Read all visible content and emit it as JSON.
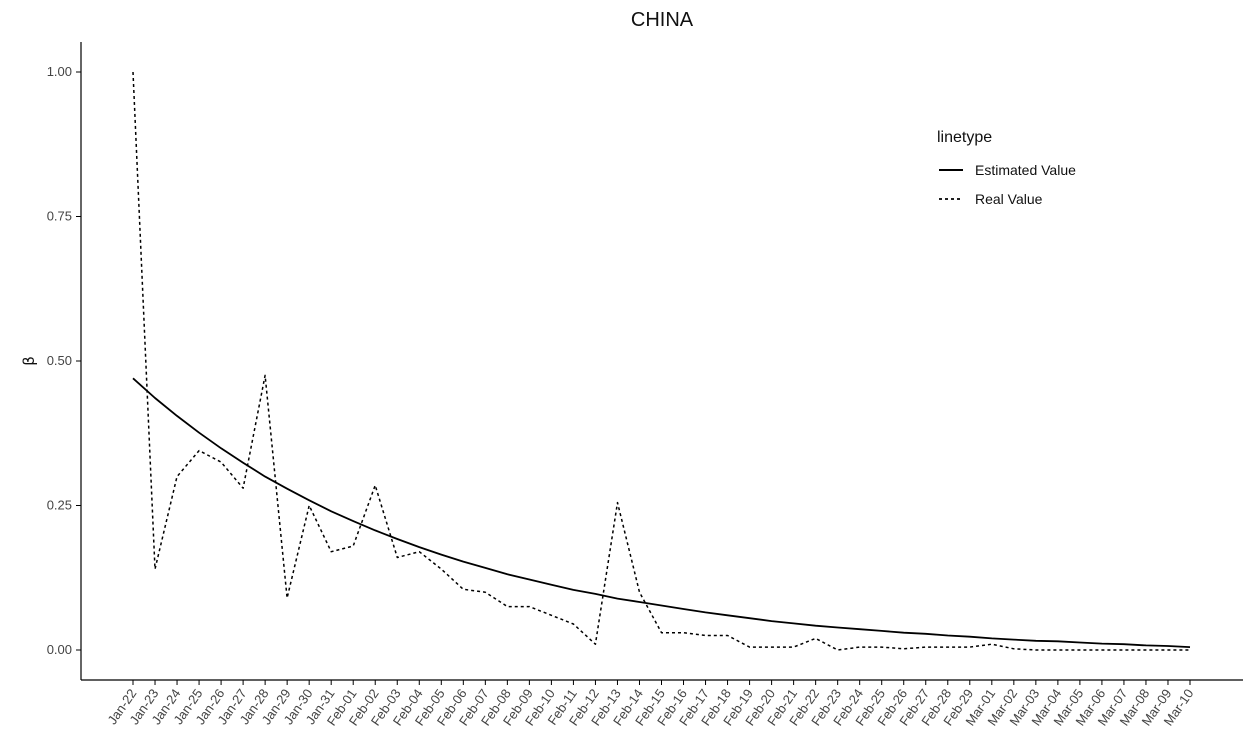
{
  "chart_data": {
    "type": "line",
    "title": "CHINA",
    "xlabel": "",
    "ylabel": "β",
    "ylim": [
      -0.05,
      1.05
    ],
    "yticks": [
      "0.00",
      "0.25",
      "0.50",
      "0.75",
      "1.00"
    ],
    "ytick_values": [
      0,
      0.25,
      0.5,
      0.75,
      1.0
    ],
    "grid": false,
    "legend": {
      "title": "linetype",
      "position": "top-right"
    },
    "categories": [
      "Jan-22",
      "Jan-23",
      "Jan-24",
      "Jan-25",
      "Jan-26",
      "Jan-27",
      "Jan-28",
      "Jan-29",
      "Jan-30",
      "Jan-31",
      "Feb-01",
      "Feb-02",
      "Feb-03",
      "Feb-04",
      "Feb-05",
      "Feb-06",
      "Feb-07",
      "Feb-08",
      "Feb-09",
      "Feb-10",
      "Feb-11",
      "Feb-12",
      "Feb-13",
      "Feb-14",
      "Feb-15",
      "Feb-16",
      "Feb-17",
      "Feb-18",
      "Feb-19",
      "Feb-20",
      "Feb-21",
      "Feb-22",
      "Feb-23",
      "Feb-24",
      "Feb-25",
      "Feb-26",
      "Feb-27",
      "Feb-28",
      "Feb-29",
      "Mar-01",
      "Mar-02",
      "Mar-03",
      "Mar-04",
      "Mar-05",
      "Mar-06",
      "Mar-07",
      "Mar-08",
      "Mar-09",
      "Mar-10"
    ],
    "series": [
      {
        "name": "Estimated Value",
        "dash": "solid",
        "color": "#000000",
        "values": [
          0.47,
          0.436,
          0.405,
          0.376,
          0.349,
          0.324,
          0.3,
          0.279,
          0.259,
          0.24,
          0.223,
          0.207,
          0.192,
          0.178,
          0.165,
          0.153,
          0.142,
          0.131,
          0.122,
          0.113,
          0.104,
          0.097,
          0.089,
          0.083,
          0.077,
          0.071,
          0.065,
          0.06,
          0.055,
          0.05,
          0.046,
          0.042,
          0.039,
          0.036,
          0.033,
          0.03,
          0.028,
          0.025,
          0.023,
          0.02,
          0.018,
          0.016,
          0.015,
          0.013,
          0.011,
          0.01,
          0.008,
          0.007,
          0.005
        ]
      },
      {
        "name": "Real Value",
        "dash": "dotted",
        "color": "#000000",
        "values": [
          1.0,
          0.14,
          0.3,
          0.345,
          0.325,
          0.28,
          0.475,
          0.09,
          0.25,
          0.17,
          0.18,
          0.285,
          0.16,
          0.17,
          0.14,
          0.105,
          0.1,
          0.075,
          0.075,
          0.06,
          0.045,
          0.01,
          0.255,
          0.1,
          0.03,
          0.03,
          0.025,
          0.025,
          0.005,
          0.005,
          0.005,
          0.02,
          0.0,
          0.005,
          0.005,
          0.002,
          0.005,
          0.005,
          0.005,
          0.01,
          0.002,
          0.0,
          0.0,
          0.0,
          0.0,
          0.0,
          0.0,
          0.0,
          0.0
        ]
      }
    ]
  }
}
